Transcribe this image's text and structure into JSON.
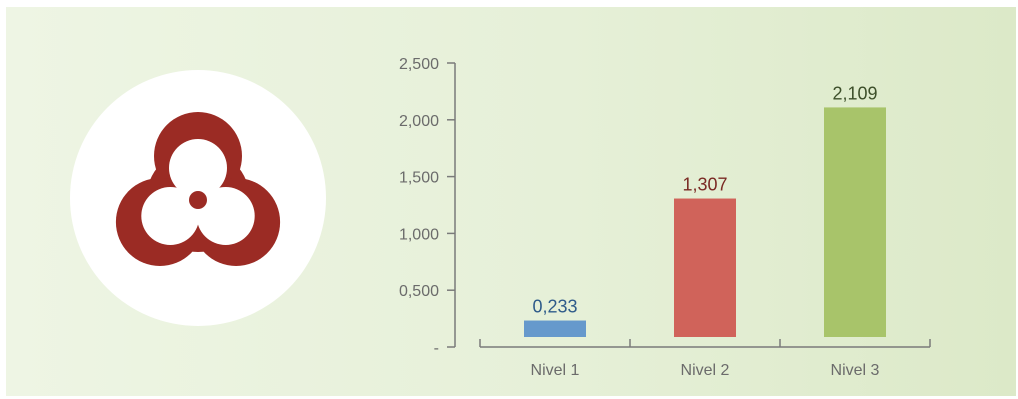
{
  "icon": "biohazard-icon",
  "colors": {
    "icon": "#9b2b24",
    "axis": "#7a7a7a",
    "bars": [
      "#6699cc",
      "#d0635a",
      "#a8c46a"
    ],
    "labels": [
      "#2f5b8a",
      "#7a2a24",
      "#3d4f2a"
    ]
  },
  "chart_data": {
    "type": "bar",
    "categories": [
      "Nivel 1",
      "Nivel 2",
      "Nivel 3"
    ],
    "values": [
      0.233,
      1.307,
      2.109
    ],
    "data_labels": [
      "0,233",
      "1,307",
      "2,109"
    ],
    "ylim": [
      0,
      2.5
    ],
    "yticks": [
      0,
      0.5,
      1.0,
      1.5,
      2.0,
      2.5
    ],
    "ytick_labels": [
      "-",
      "0,500",
      "1,000",
      "1,500",
      "2,000",
      "2,500"
    ],
    "grid": false,
    "legend": "none"
  }
}
